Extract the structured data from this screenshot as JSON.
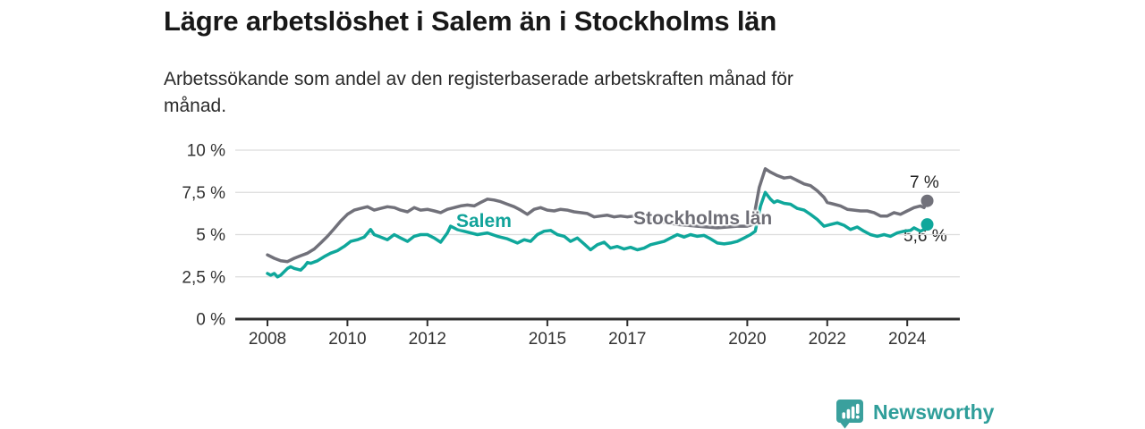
{
  "header": {
    "title": "Lägre arbetslöshet i Salem än i Stockholms län",
    "subtitle": "Arbetssökande som andel av den registerbaserade arbetskraften månad för månad."
  },
  "chart_data": {
    "type": "line",
    "title": "Lägre arbetslöshet i Salem än i Stockholms län",
    "xlabel": "",
    "ylabel": "",
    "unit": "%",
    "ylim": [
      0,
      10
    ],
    "grid": true,
    "legend_position": "inline-labels",
    "colors": {
      "background": "#ffffff",
      "gridline": "#dcdcdc",
      "axis": "#2f2f2f",
      "tick_text": "#333333",
      "annotation_text": "#222222"
    },
    "yticks": [
      {
        "value": 0,
        "label": "0 %"
      },
      {
        "value": 2.5,
        "label": "2,5 %"
      },
      {
        "value": 5,
        "label": "5 %"
      },
      {
        "value": 7.5,
        "label": "7,5 %"
      },
      {
        "value": 10,
        "label": "10 %"
      }
    ],
    "xticks": [
      {
        "value": 2008,
        "label": "2008"
      },
      {
        "value": 2010,
        "label": "2010"
      },
      {
        "value": 2012,
        "label": "2012"
      },
      {
        "value": 2015,
        "label": "2015"
      },
      {
        "value": 2017,
        "label": "2017"
      },
      {
        "value": 2020,
        "label": "2020"
      },
      {
        "value": 2022,
        "label": "2022"
      },
      {
        "value": 2024,
        "label": "2024"
      }
    ],
    "series": [
      {
        "name": "Stockholms län",
        "color": "#71717a",
        "label_color": "#6d6d75",
        "end_annotation": "7 %",
        "points": [
          [
            2008.0,
            3.8
          ],
          [
            2008.17,
            3.6
          ],
          [
            2008.33,
            3.45
          ],
          [
            2008.5,
            3.4
          ],
          [
            2008.67,
            3.6
          ],
          [
            2008.83,
            3.75
          ],
          [
            2009.0,
            3.9
          ],
          [
            2009.17,
            4.15
          ],
          [
            2009.33,
            4.5
          ],
          [
            2009.5,
            4.9
          ],
          [
            2009.67,
            5.35
          ],
          [
            2009.83,
            5.8
          ],
          [
            2010.0,
            6.2
          ],
          [
            2010.17,
            6.45
          ],
          [
            2010.33,
            6.55
          ],
          [
            2010.5,
            6.65
          ],
          [
            2010.67,
            6.45
          ],
          [
            2010.83,
            6.55
          ],
          [
            2011.0,
            6.65
          ],
          [
            2011.17,
            6.6
          ],
          [
            2011.33,
            6.45
          ],
          [
            2011.5,
            6.35
          ],
          [
            2011.67,
            6.6
          ],
          [
            2011.83,
            6.45
          ],
          [
            2012.0,
            6.5
          ],
          [
            2012.17,
            6.4
          ],
          [
            2012.33,
            6.3
          ],
          [
            2012.5,
            6.5
          ],
          [
            2012.67,
            6.6
          ],
          [
            2012.83,
            6.7
          ],
          [
            2013.0,
            6.75
          ],
          [
            2013.17,
            6.7
          ],
          [
            2013.33,
            6.9
          ],
          [
            2013.5,
            7.1
          ],
          [
            2013.67,
            7.05
          ],
          [
            2013.83,
            6.95
          ],
          [
            2014.0,
            6.8
          ],
          [
            2014.17,
            6.65
          ],
          [
            2014.33,
            6.45
          ],
          [
            2014.5,
            6.2
          ],
          [
            2014.67,
            6.5
          ],
          [
            2014.83,
            6.6
          ],
          [
            2015.0,
            6.45
          ],
          [
            2015.17,
            6.4
          ],
          [
            2015.33,
            6.5
          ],
          [
            2015.5,
            6.45
          ],
          [
            2015.67,
            6.35
          ],
          [
            2015.83,
            6.3
          ],
          [
            2016.0,
            6.25
          ],
          [
            2016.17,
            6.05
          ],
          [
            2016.33,
            6.1
          ],
          [
            2016.5,
            6.15
          ],
          [
            2016.67,
            6.05
          ],
          [
            2016.83,
            6.1
          ],
          [
            2017.0,
            6.05
          ],
          [
            2017.17,
            6.1
          ],
          [
            2017.33,
            6.0
          ],
          [
            2017.5,
            5.9
          ],
          [
            2017.67,
            5.85
          ],
          [
            2017.83,
            5.75
          ],
          [
            2018.0,
            5.7
          ],
          [
            2018.25,
            5.6
          ],
          [
            2018.5,
            5.55
          ],
          [
            2018.75,
            5.5
          ],
          [
            2019.0,
            5.45
          ],
          [
            2019.25,
            5.4
          ],
          [
            2019.5,
            5.45
          ],
          [
            2019.75,
            5.5
          ],
          [
            2020.0,
            5.5
          ],
          [
            2020.13,
            5.6
          ],
          [
            2020.3,
            7.8
          ],
          [
            2020.45,
            8.9
          ],
          [
            2020.58,
            8.7
          ],
          [
            2020.75,
            8.5
          ],
          [
            2020.92,
            8.35
          ],
          [
            2021.08,
            8.4
          ],
          [
            2021.25,
            8.2
          ],
          [
            2021.42,
            8.0
          ],
          [
            2021.58,
            7.9
          ],
          [
            2021.75,
            7.6
          ],
          [
            2021.92,
            7.2
          ],
          [
            2022.0,
            6.9
          ],
          [
            2022.17,
            6.8
          ],
          [
            2022.33,
            6.7
          ],
          [
            2022.5,
            6.5
          ],
          [
            2022.67,
            6.45
          ],
          [
            2022.83,
            6.4
          ],
          [
            2023.0,
            6.4
          ],
          [
            2023.17,
            6.3
          ],
          [
            2023.33,
            6.1
          ],
          [
            2023.5,
            6.1
          ],
          [
            2023.67,
            6.3
          ],
          [
            2023.83,
            6.2
          ],
          [
            2024.0,
            6.4
          ],
          [
            2024.17,
            6.6
          ],
          [
            2024.33,
            6.7
          ],
          [
            2024.42,
            6.6
          ],
          [
            2024.5,
            7.0
          ]
        ]
      },
      {
        "name": "Salem",
        "color": "#0fa79b",
        "label_color": "#11a39a",
        "end_annotation": "5,6 %",
        "points": [
          [
            2008.0,
            2.7
          ],
          [
            2008.08,
            2.6
          ],
          [
            2008.17,
            2.7
          ],
          [
            2008.25,
            2.5
          ],
          [
            2008.33,
            2.6
          ],
          [
            2008.5,
            3.0
          ],
          [
            2008.58,
            3.1
          ],
          [
            2008.67,
            3.0
          ],
          [
            2008.83,
            2.9
          ],
          [
            2008.92,
            3.1
          ],
          [
            2009.0,
            3.35
          ],
          [
            2009.08,
            3.3
          ],
          [
            2009.25,
            3.45
          ],
          [
            2009.42,
            3.7
          ],
          [
            2009.58,
            3.9
          ],
          [
            2009.75,
            4.05
          ],
          [
            2009.92,
            4.3
          ],
          [
            2010.08,
            4.6
          ],
          [
            2010.25,
            4.7
          ],
          [
            2010.42,
            4.85
          ],
          [
            2010.58,
            5.3
          ],
          [
            2010.67,
            5.0
          ],
          [
            2010.83,
            4.85
          ],
          [
            2011.0,
            4.7
          ],
          [
            2011.17,
            5.0
          ],
          [
            2011.33,
            4.8
          ],
          [
            2011.5,
            4.6
          ],
          [
            2011.67,
            4.9
          ],
          [
            2011.83,
            5.0
          ],
          [
            2012.0,
            5.0
          ],
          [
            2012.17,
            4.8
          ],
          [
            2012.33,
            4.55
          ],
          [
            2012.5,
            5.1
          ],
          [
            2012.58,
            5.5
          ],
          [
            2012.75,
            5.3
          ],
          [
            2013.0,
            5.15
          ],
          [
            2013.25,
            5.0
          ],
          [
            2013.5,
            5.1
          ],
          [
            2013.75,
            4.9
          ],
          [
            2014.0,
            4.75
          ],
          [
            2014.25,
            4.5
          ],
          [
            2014.42,
            4.7
          ],
          [
            2014.58,
            4.6
          ],
          [
            2014.75,
            5.0
          ],
          [
            2014.92,
            5.2
          ],
          [
            2015.08,
            5.25
          ],
          [
            2015.25,
            5.0
          ],
          [
            2015.42,
            4.9
          ],
          [
            2015.58,
            4.6
          ],
          [
            2015.75,
            4.8
          ],
          [
            2015.92,
            4.45
          ],
          [
            2016.08,
            4.1
          ],
          [
            2016.25,
            4.4
          ],
          [
            2016.42,
            4.55
          ],
          [
            2016.58,
            4.2
          ],
          [
            2016.75,
            4.3
          ],
          [
            2016.92,
            4.15
          ],
          [
            2017.08,
            4.25
          ],
          [
            2017.25,
            4.1
          ],
          [
            2017.42,
            4.2
          ],
          [
            2017.58,
            4.4
          ],
          [
            2017.75,
            4.5
          ],
          [
            2017.92,
            4.6
          ],
          [
            2018.08,
            4.8
          ],
          [
            2018.25,
            5.0
          ],
          [
            2018.42,
            4.85
          ],
          [
            2018.58,
            5.0
          ],
          [
            2018.75,
            4.9
          ],
          [
            2018.92,
            4.95
          ],
          [
            2019.08,
            4.75
          ],
          [
            2019.25,
            4.5
          ],
          [
            2019.42,
            4.45
          ],
          [
            2019.58,
            4.5
          ],
          [
            2019.75,
            4.6
          ],
          [
            2019.92,
            4.8
          ],
          [
            2020.08,
            5.0
          ],
          [
            2020.2,
            5.2
          ],
          [
            2020.33,
            6.7
          ],
          [
            2020.45,
            7.5
          ],
          [
            2020.58,
            7.1
          ],
          [
            2020.67,
            6.9
          ],
          [
            2020.75,
            7.0
          ],
          [
            2020.92,
            6.85
          ],
          [
            2021.08,
            6.8
          ],
          [
            2021.25,
            6.55
          ],
          [
            2021.42,
            6.45
          ],
          [
            2021.58,
            6.2
          ],
          [
            2021.75,
            5.9
          ],
          [
            2021.92,
            5.5
          ],
          [
            2022.08,
            5.6
          ],
          [
            2022.25,
            5.7
          ],
          [
            2022.42,
            5.55
          ],
          [
            2022.58,
            5.3
          ],
          [
            2022.75,
            5.45
          ],
          [
            2022.92,
            5.2
          ],
          [
            2023.08,
            5.0
          ],
          [
            2023.25,
            4.9
          ],
          [
            2023.42,
            5.0
          ],
          [
            2023.58,
            4.9
          ],
          [
            2023.75,
            5.1
          ],
          [
            2023.92,
            5.2
          ],
          [
            2024.08,
            5.25
          ],
          [
            2024.17,
            5.4
          ],
          [
            2024.25,
            5.3
          ],
          [
            2024.33,
            5.2
          ],
          [
            2024.42,
            5.3
          ],
          [
            2024.5,
            5.6
          ]
        ]
      }
    ]
  },
  "footer": {
    "brand": "Newsworthy",
    "brand_color": "#2f9e9a",
    "logo_icon": "bar-chart-badge-icon"
  }
}
